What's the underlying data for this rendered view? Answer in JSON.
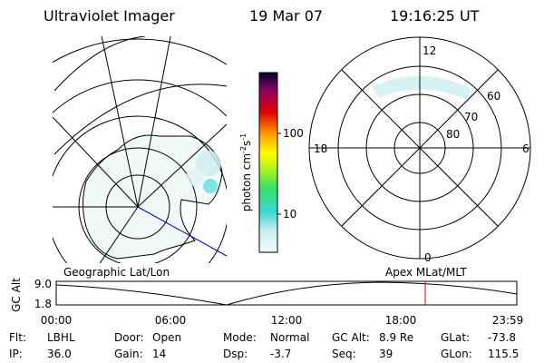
{
  "header": {
    "title": "Ultraviolet Imager",
    "date": "19 Mar 07",
    "time": "19:16:25 UT"
  },
  "colorbar": {
    "label_parts": [
      "photon cm",
      "-2",
      "s",
      "-1"
    ],
    "ticks": [
      "100",
      "10"
    ]
  },
  "polar": {
    "mlt_labels": [
      "12",
      "18",
      "6",
      "0"
    ],
    "lat_labels": [
      "60",
      "70",
      "80"
    ]
  },
  "panels": {
    "left": "Geographic Lat/Lon",
    "right": "Apex MLat/MLT"
  },
  "timeline": {
    "axis_label": "GC Alt",
    "yticks": [
      "9.0",
      "1.8"
    ],
    "xticks": [
      "00:00",
      "06:00",
      "12:00",
      "18:00",
      "23:59"
    ]
  },
  "footer": {
    "fields": [
      {
        "label": "Flt:",
        "value": "LBHL"
      },
      {
        "label": "IP:",
        "value": "36.0"
      },
      {
        "label": "Door:",
        "value": "Open"
      },
      {
        "label": "Gain:",
        "value": "14"
      },
      {
        "label": "Mode:",
        "value": "Normal"
      },
      {
        "label": "Dsp:",
        "value": "-3.7"
      },
      {
        "label": "GC Alt:",
        "value": "8.9 Re"
      },
      {
        "label": "Seq:",
        "value": "39"
      },
      {
        "label": "GLat:",
        "value": "-73.8"
      },
      {
        "label": "GLon:",
        "value": "115.5"
      }
    ]
  }
}
